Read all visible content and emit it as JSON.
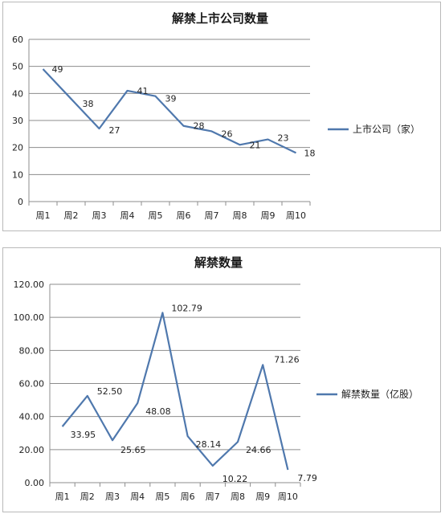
{
  "chart_data": [
    {
      "type": "line",
      "title": "解禁上市公司数量",
      "categories": [
        "周1",
        "周2",
        "周3",
        "周4",
        "周5",
        "周6",
        "周7",
        "周8",
        "周9",
        "周10"
      ],
      "series": [
        {
          "name": "上市公司（家）",
          "values": [
            49,
            38,
            27,
            41,
            39,
            28,
            26,
            21,
            23,
            18
          ],
          "labels": [
            "49",
            "38",
            "27",
            "41",
            "39",
            "28",
            "26",
            "21",
            "23",
            "18"
          ],
          "color": "#4f78ad"
        }
      ],
      "ylim": [
        0,
        60
      ],
      "yticks": [
        "0",
        "10",
        "20",
        "30",
        "40",
        "50",
        "60"
      ],
      "xlabel": "",
      "ylabel": "",
      "grid": true,
      "legend": "right"
    },
    {
      "type": "line",
      "title": "解禁数量",
      "categories": [
        "周1",
        "周2",
        "周3",
        "周4",
        "周5",
        "周6",
        "周7",
        "周8",
        "周9",
        "周10"
      ],
      "series": [
        {
          "name": "解禁数量（亿股）",
          "values": [
            33.95,
            52.5,
            25.65,
            48.08,
            102.79,
            28.14,
            10.22,
            24.66,
            71.26,
            7.79
          ],
          "labels": [
            "33.95",
            "52.50",
            "25.65",
            "48.08",
            "102.79",
            "28.14",
            "10.22",
            "24.66",
            "71.26",
            "7.79"
          ],
          "color": "#4f78ad"
        }
      ],
      "ylim": [
        0,
        120
      ],
      "yticks": [
        "0.00",
        "20.00",
        "40.00",
        "60.00",
        "80.00",
        "100.00",
        "120.00"
      ],
      "xlabel": "",
      "ylabel": "",
      "grid": true,
      "legend": "right"
    }
  ]
}
